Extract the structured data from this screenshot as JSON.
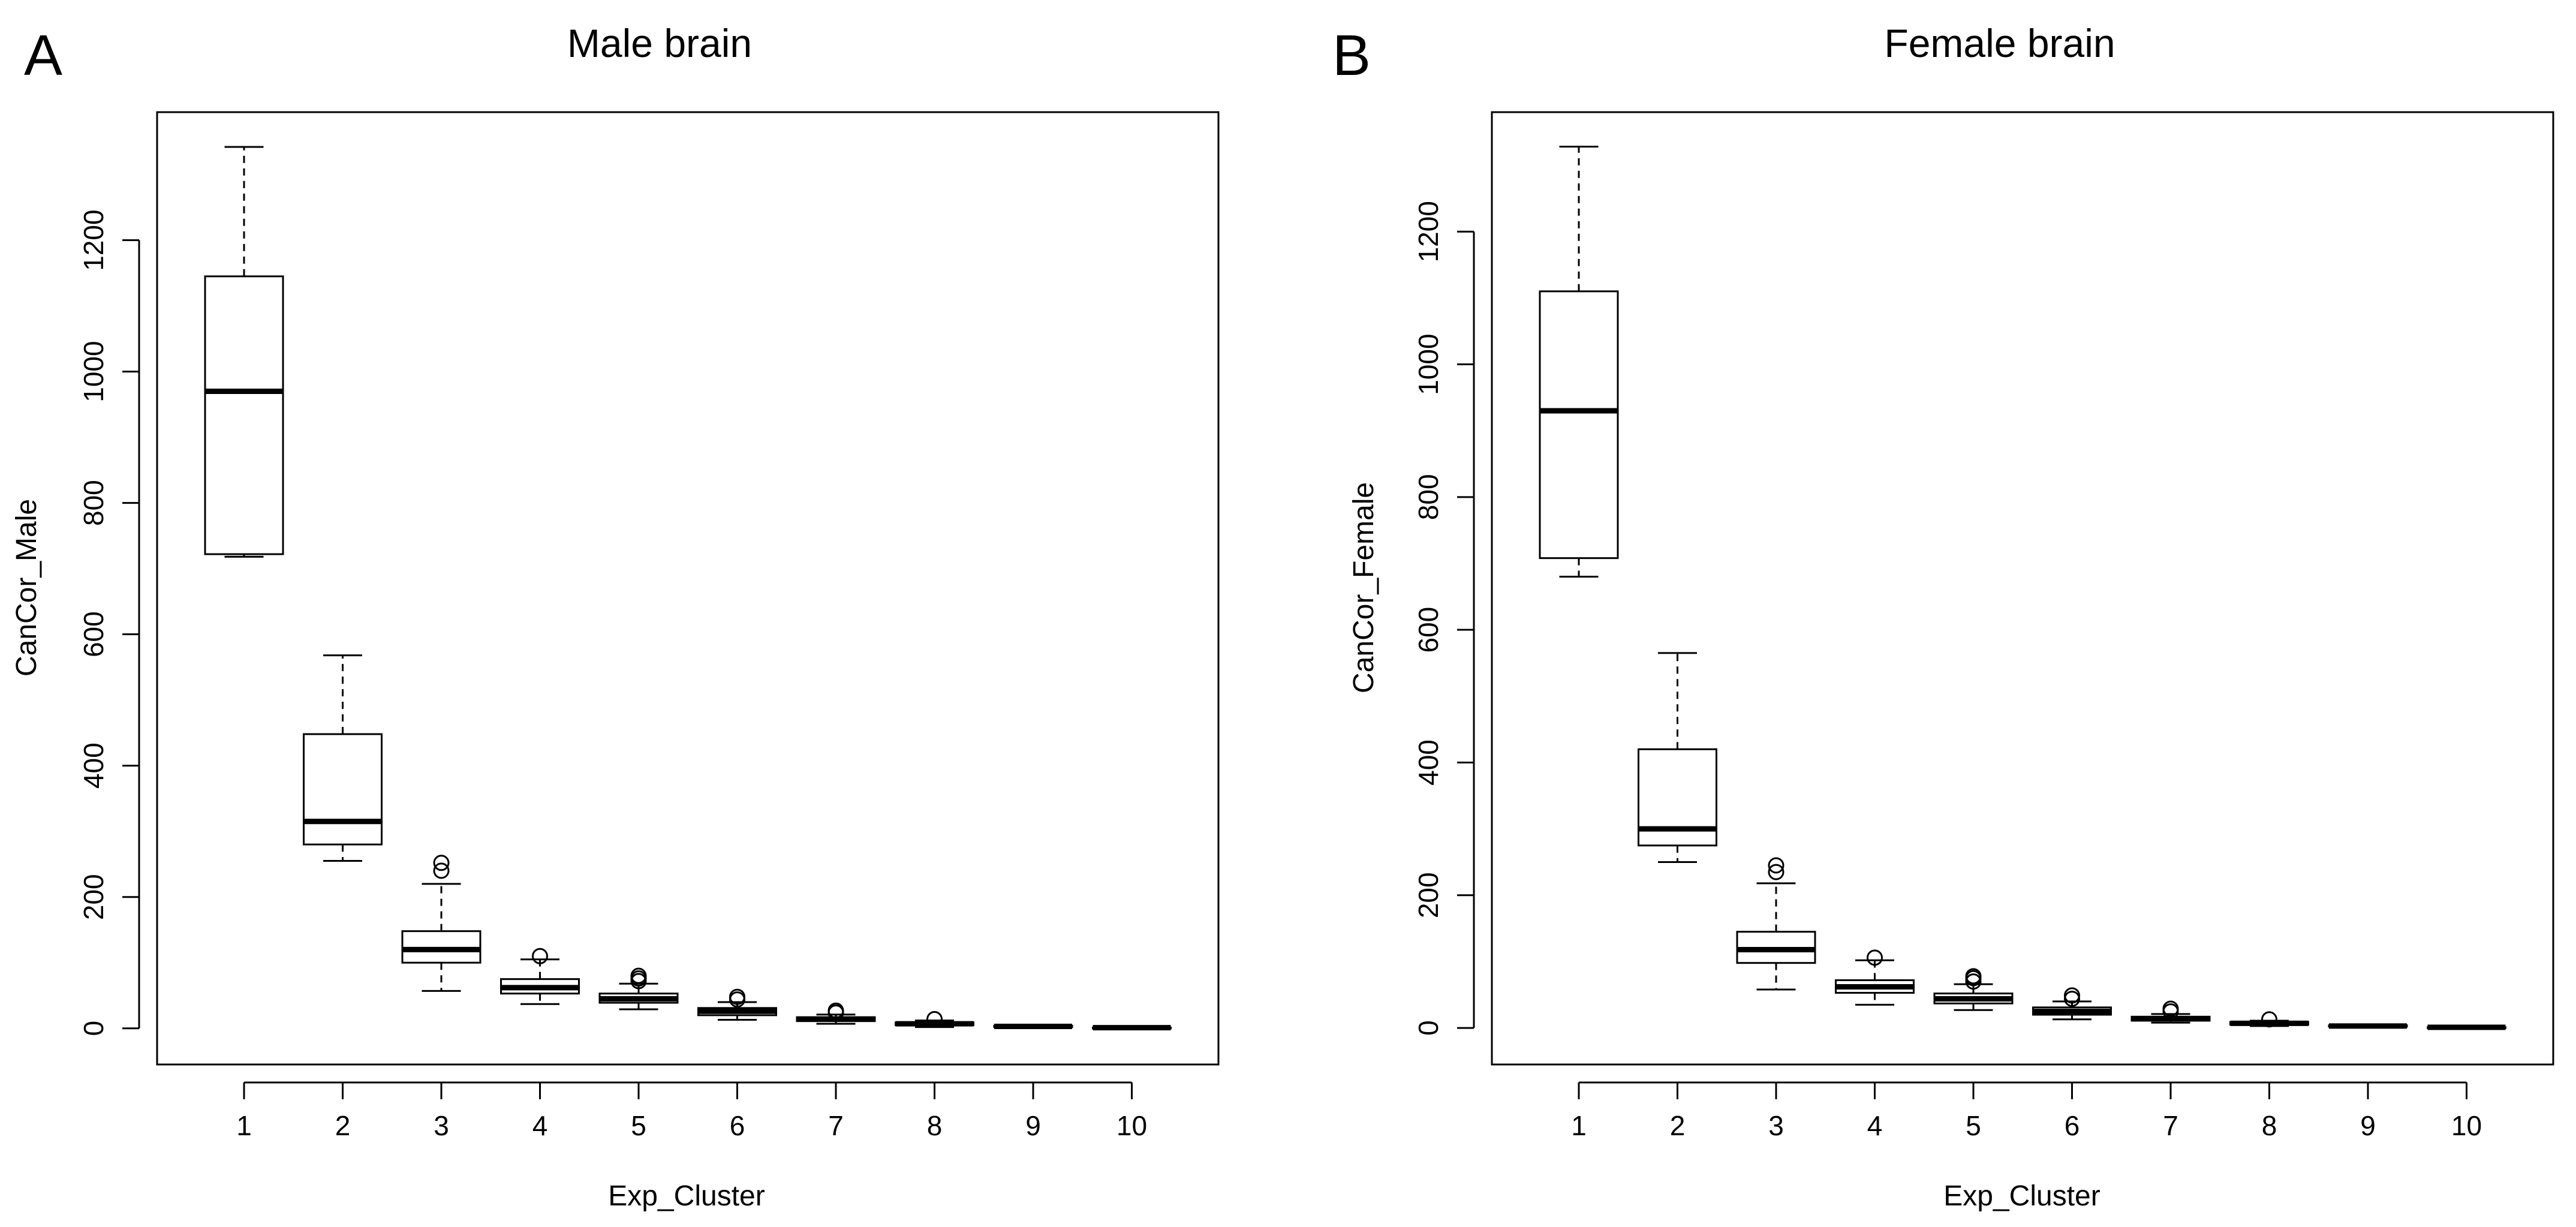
{
  "chart_data": [
    {
      "type": "boxplot",
      "panel_label": "A",
      "title": "Male brain",
      "xlabel": "Exp_Cluster",
      "ylabel": "CanCor_Male",
      "ylim": [
        -55,
        1395
      ],
      "yticks": [
        0,
        200,
        400,
        600,
        800,
        1000,
        1200
      ],
      "categories": [
        "1",
        "2",
        "3",
        "4",
        "5",
        "6",
        "7",
        "8",
        "9",
        "10"
      ],
      "boxes": [
        {
          "min": 718,
          "q1": 722,
          "median": 970,
          "q3": 1145,
          "max": 1342,
          "outliers": []
        },
        {
          "min": 255,
          "q1": 280,
          "median": 315,
          "q3": 448,
          "max": 568,
          "outliers": []
        },
        {
          "min": 57,
          "q1": 100,
          "median": 120,
          "q3": 148,
          "max": 220,
          "outliers": [
            240,
            252
          ]
        },
        {
          "min": 37,
          "q1": 53,
          "median": 62,
          "q3": 75,
          "max": 105,
          "outliers": [
            110
          ]
        },
        {
          "min": 29,
          "q1": 39,
          "median": 45,
          "q3": 53,
          "max": 68,
          "outliers": [
            72,
            76,
            80
          ]
        },
        {
          "min": 13,
          "q1": 20,
          "median": 26,
          "q3": 31,
          "max": 40,
          "outliers": [
            44,
            48
          ]
        },
        {
          "min": 7,
          "q1": 11,
          "median": 14,
          "q3": 17,
          "max": 21,
          "outliers": [
            24,
            27
          ]
        },
        {
          "min": 2,
          "q1": 5,
          "median": 7,
          "q3": 9,
          "max": 12,
          "outliers": [
            14
          ]
        },
        {
          "min": 1,
          "q1": 2,
          "median": 3,
          "q3": 4,
          "max": 5,
          "outliers": []
        },
        {
          "min": 0,
          "q1": 0,
          "median": 1,
          "q3": 1,
          "max": 2,
          "outliers": []
        }
      ]
    },
    {
      "type": "boxplot",
      "panel_label": "B",
      "title": "Female brain",
      "xlabel": "Exp_Cluster",
      "ylabel": "CanCor_Female",
      "ylim": [
        -55,
        1380
      ],
      "yticks": [
        0,
        200,
        400,
        600,
        800,
        1000,
        1200
      ],
      "categories": [
        "1",
        "2",
        "3",
        "4",
        "5",
        "6",
        "7",
        "8",
        "9",
        "10"
      ],
      "boxes": [
        {
          "min": 680,
          "q1": 708,
          "median": 930,
          "q3": 1110,
          "max": 1328,
          "outliers": []
        },
        {
          "min": 250,
          "q1": 275,
          "median": 300,
          "q3": 420,
          "max": 565,
          "outliers": []
        },
        {
          "min": 58,
          "q1": 98,
          "median": 118,
          "q3": 145,
          "max": 218,
          "outliers": [
            235,
            245
          ]
        },
        {
          "min": 35,
          "q1": 53,
          "median": 62,
          "q3": 72,
          "max": 102,
          "outliers": [
            106
          ]
        },
        {
          "min": 27,
          "q1": 37,
          "median": 44,
          "q3": 52,
          "max": 66,
          "outliers": [
            70,
            75,
            78
          ]
        },
        {
          "min": 13,
          "q1": 20,
          "median": 25,
          "q3": 31,
          "max": 40,
          "outliers": [
            44,
            49
          ]
        },
        {
          "min": 8,
          "q1": 11,
          "median": 14,
          "q3": 17,
          "max": 21,
          "outliers": [
            25,
            29
          ]
        },
        {
          "min": 3,
          "q1": 5,
          "median": 7,
          "q3": 9,
          "max": 11,
          "outliers": [
            13
          ]
        },
        {
          "min": 1,
          "q1": 2,
          "median": 3,
          "q3": 4,
          "max": 5,
          "outliers": []
        },
        {
          "min": 0,
          "q1": 0,
          "median": 1,
          "q3": 1,
          "max": 2,
          "outliers": []
        }
      ]
    }
  ]
}
